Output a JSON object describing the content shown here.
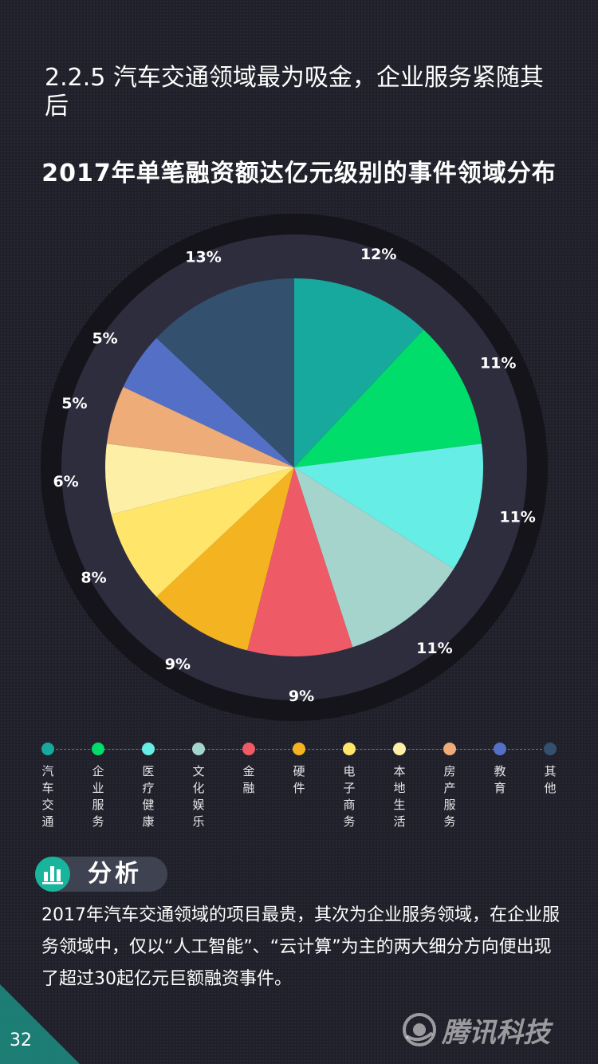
{
  "header": {
    "section_title": "2.2.5 汽车交通领域最为吸金，企业服务紧随其后"
  },
  "chart_data": {
    "type": "pie",
    "title": "2017年单笔融资额达亿元级别的事件领域分布",
    "labels": [
      "汽车交通",
      "企业服务",
      "医疗健康",
      "文化娱乐",
      "金融",
      "硬件",
      "电子商务",
      "本地生活",
      "房产服务",
      "教育",
      "其他"
    ],
    "values": [
      12,
      11,
      11,
      11,
      9,
      9,
      8,
      6,
      5,
      5,
      13
    ],
    "value_labels": [
      "12%",
      "11%",
      "11%",
      "11%",
      "9%",
      "9%",
      "8%",
      "6%",
      "5%",
      "5%",
      "13%"
    ],
    "colors": [
      "#17a89e",
      "#00dd6b",
      "#66eee6",
      "#a4d4cc",
      "#ee5a66",
      "#f4b421",
      "#ffe66a",
      "#fdf0a6",
      "#edac78",
      "#5470c6",
      "#33506e"
    ],
    "legend_position": "bottom"
  },
  "analysis": {
    "label": "分析",
    "icon": "bar-chart-icon",
    "text": "2017年汽车交通领域的项目最贵，其次为企业服务领域，在企业服务领域中，仅以“人工智能”、“云计算”为主的两大细分方向便出现了超过30起亿元巨额融资事件。"
  },
  "footer": {
    "page_number": "32",
    "brand": "腾讯科技",
    "brand_icon": "tencent-logo-icon"
  }
}
